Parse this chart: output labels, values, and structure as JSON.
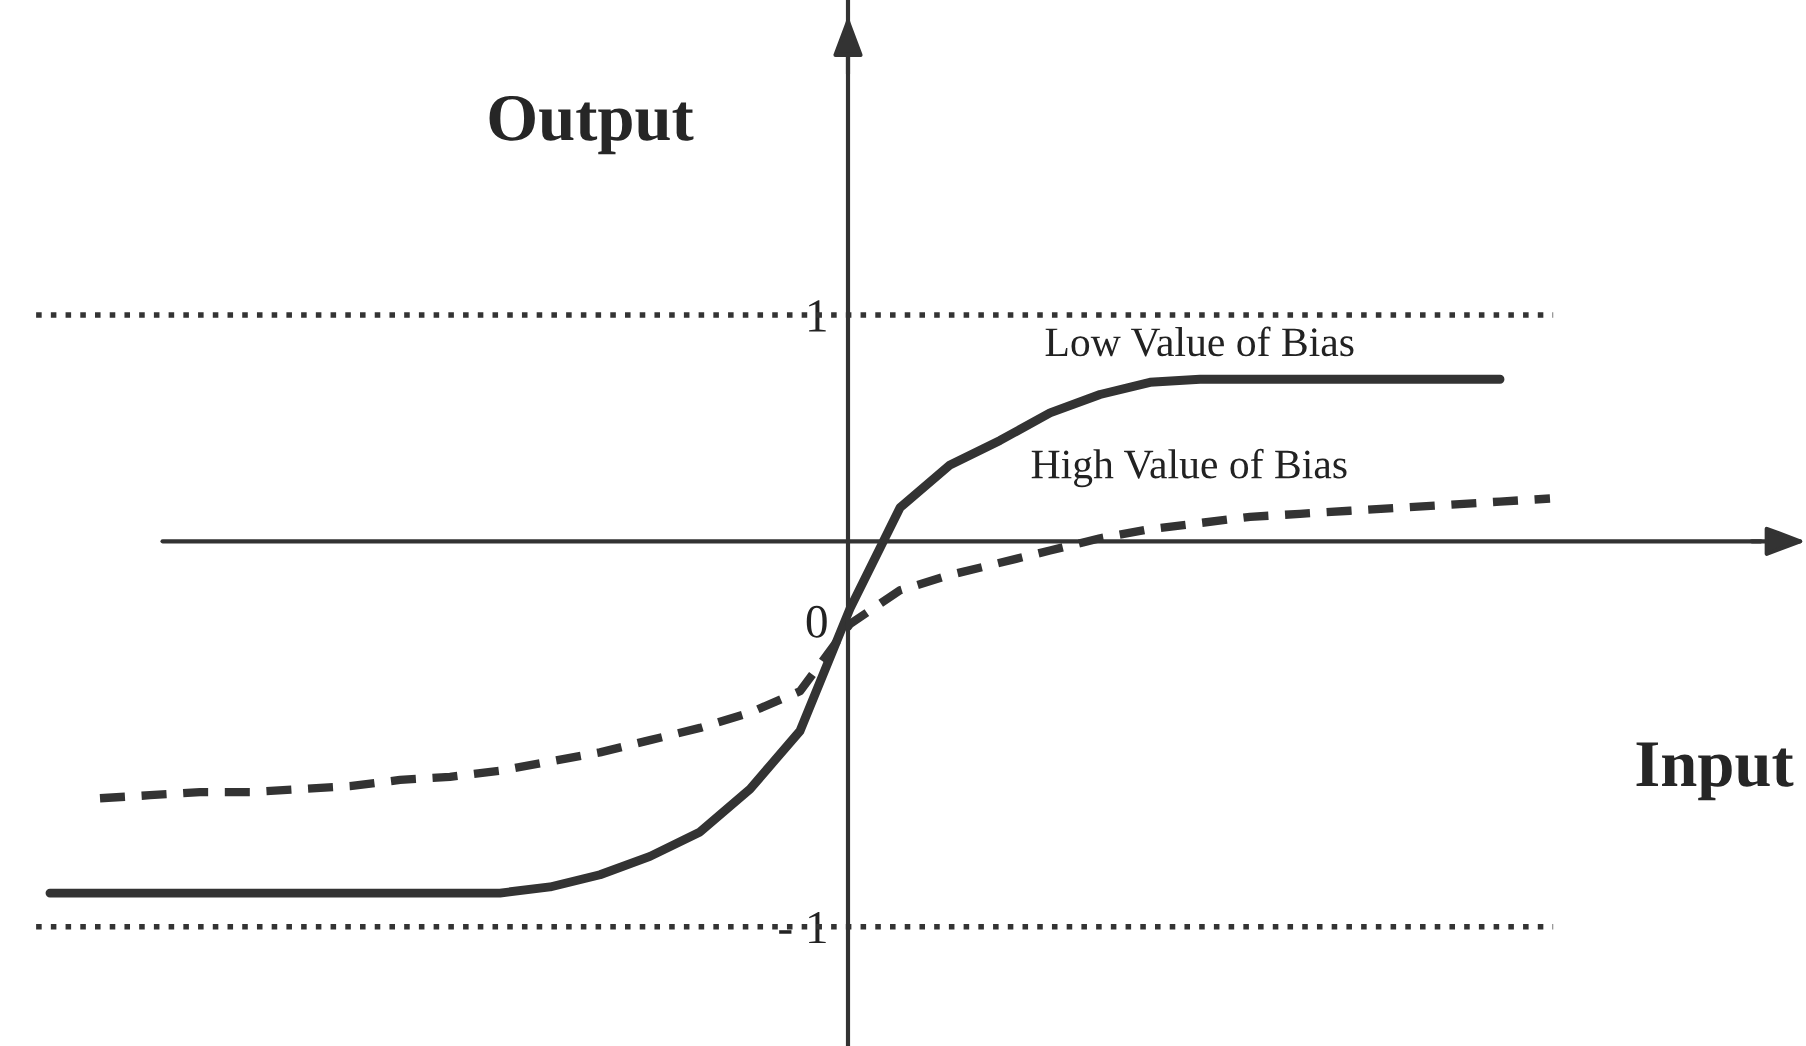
{
  "chart_data": {
    "type": "line",
    "xlabel": "Input",
    "ylabel": "Output",
    "categories": [
      null,
      null,
      null,
      null,
      null,
      null,
      null,
      null,
      null,
      null,
      null,
      null,
      null,
      null,
      null,
      null,
      null,
      null,
      null,
      null,
      null,
      null,
      null,
      null,
      null,
      null,
      null,
      null,
      null,
      null,
      null
    ],
    "series": [
      {
        "name": "Low Value of Bias",
        "color": "#333333",
        "line_style": "solid",
        "values": [
          -0.89,
          -0.89,
          -0.89,
          -0.89,
          -0.89,
          -0.89,
          -0.89,
          -0.89,
          -0.89,
          -0.89,
          -0.87,
          -0.83,
          -0.77,
          -0.69,
          -0.55,
          -0.36,
          0.04,
          0.37,
          0.51,
          0.59,
          0.68,
          0.74,
          0.78,
          0.79,
          0.79,
          0.79,
          0.79,
          0.79,
          0.79,
          0.79,
          null
        ]
      },
      {
        "name": "High Value of Bias",
        "color": "#333333",
        "line_style": "dashed",
        "values": [
          null,
          -0.58,
          -0.57,
          -0.56,
          -0.56,
          -0.55,
          -0.54,
          -0.52,
          -0.51,
          -0.49,
          -0.46,
          -0.43,
          -0.39,
          -0.35,
          -0.3,
          -0.23,
          -0.01,
          0.1,
          0.15,
          0.19,
          0.23,
          0.27,
          0.3,
          0.32,
          0.34,
          0.35,
          0.36,
          0.37,
          0.38,
          0.39,
          0.4
        ]
      }
    ],
    "ylim": [
      -1.39,
      2.03
    ],
    "yticks": [
      1,
      0,
      {
        "value": -1,
        "label": "- 1"
      }
    ],
    "tick_labels": "y",
    "ref_lines": [
      {
        "axis": "y",
        "value": 1,
        "line_style": "dotted",
        "color": "#333333"
      },
      {
        "axis": "y",
        "value": -1,
        "line_style": "dotted",
        "color": "#333333"
      },
      {
        "axis": "y",
        "value": 0.26,
        "line_style": "solid",
        "color": "#333333"
      }
    ],
    "legend": false,
    "grid": false
  }
}
